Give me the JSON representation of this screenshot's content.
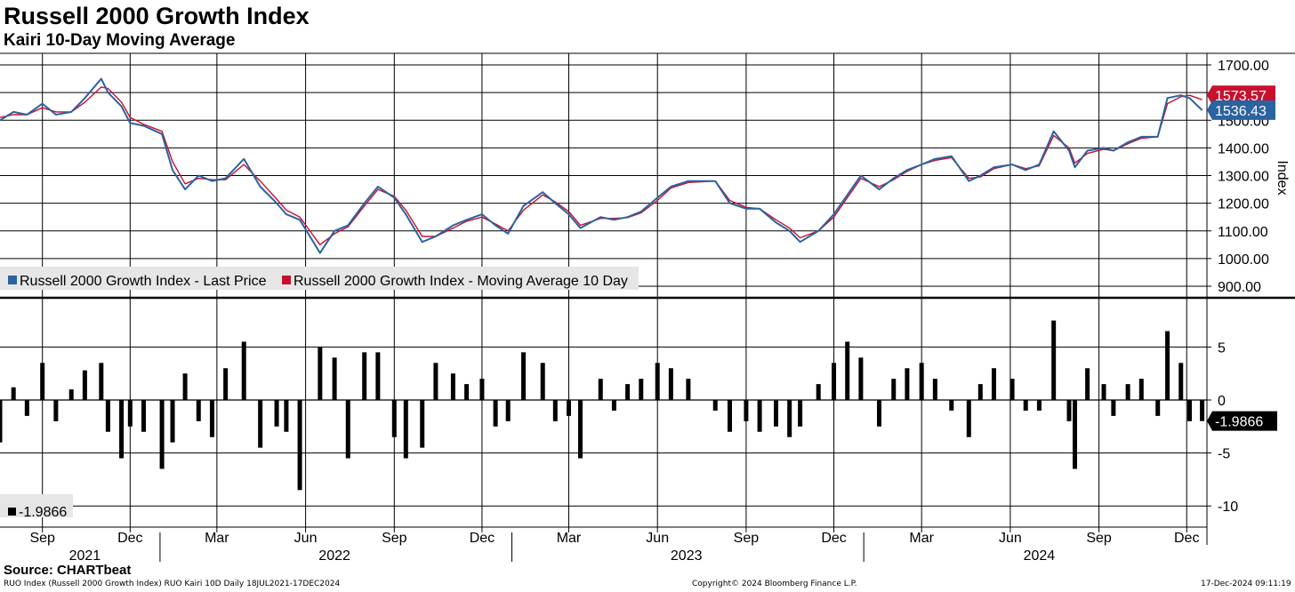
{
  "header": {
    "title": "Russell 2000 Growth Index",
    "subtitle": "Kairi 10-Day Moving Average"
  },
  "footer": {
    "source": "Source: CHARTbeat",
    "left_note": "RUO Index (Russell 2000 Growth Index) RUO Kairi 10D  Daily 18JUL2021-17DEC2024",
    "center_note": "Copyright© 2024 Bloomberg Finance L.P.",
    "right_note": "17-Dec-2024 09:11:19"
  },
  "colors": {
    "last_price": "#2b62a0",
    "moving_average": "#c8102e",
    "kairi": "#000000",
    "grid": "#000000"
  },
  "chart_data": [
    {
      "type": "line",
      "ylabel": "Index",
      "ylim": [
        880,
        1720
      ],
      "y_ticks": [
        "1700.00",
        "1600.00",
        "1500.00",
        "1400.00",
        "1300.00",
        "1200.00",
        "1100.00",
        "1000.00",
        "900.00"
      ],
      "legend_position": "bottom-left",
      "series": [
        {
          "name": "Russell 2000 Growth Index - Last Price",
          "last_value_label": "1536.43",
          "x": [
            "2021-07-19",
            "2021-08-02",
            "2021-08-16",
            "2021-09-01",
            "2021-09-15",
            "2021-10-01",
            "2021-10-15",
            "2021-11-01",
            "2021-11-08",
            "2021-11-22",
            "2021-12-01",
            "2021-12-15",
            "2022-01-03",
            "2022-01-14",
            "2022-01-27",
            "2022-02-10",
            "2022-02-24",
            "2022-03-10",
            "2022-03-29",
            "2022-04-15",
            "2022-05-02",
            "2022-05-12",
            "2022-05-26",
            "2022-06-16",
            "2022-07-01",
            "2022-07-15",
            "2022-08-01",
            "2022-08-15",
            "2022-09-01",
            "2022-09-13",
            "2022-09-30",
            "2022-10-14",
            "2022-11-01",
            "2022-11-15",
            "2022-12-01",
            "2022-12-15",
            "2022-12-28",
            "2023-01-13",
            "2023-02-02",
            "2023-02-15",
            "2023-03-01",
            "2023-03-13",
            "2023-04-03",
            "2023-04-17",
            "2023-05-01",
            "2023-05-15",
            "2023-06-01",
            "2023-06-15",
            "2023-07-03",
            "2023-07-31",
            "2023-08-15",
            "2023-09-01",
            "2023-09-15",
            "2023-10-02",
            "2023-10-16",
            "2023-10-27",
            "2023-11-15",
            "2023-12-01",
            "2023-12-15",
            "2023-12-29",
            "2024-01-17",
            "2024-02-01",
            "2024-02-15",
            "2024-03-01",
            "2024-03-15",
            "2024-04-01",
            "2024-04-19",
            "2024-05-01",
            "2024-05-15",
            "2024-06-03",
            "2024-06-17",
            "2024-07-01",
            "2024-07-16",
            "2024-08-01",
            "2024-08-07",
            "2024-08-20",
            "2024-09-06",
            "2024-09-16",
            "2024-10-01",
            "2024-10-15",
            "2024-11-01",
            "2024-11-11",
            "2024-11-25",
            "2024-12-04",
            "2024-12-17"
          ],
          "y": [
            1500,
            1530,
            1520,
            1560,
            1520,
            1530,
            1580,
            1650,
            1600,
            1550,
            1490,
            1480,
            1450,
            1320,
            1250,
            1300,
            1280,
            1290,
            1360,
            1260,
            1200,
            1160,
            1140,
            1020,
            1100,
            1120,
            1200,
            1260,
            1220,
            1160,
            1060,
            1080,
            1120,
            1140,
            1160,
            1120,
            1090,
            1190,
            1240,
            1200,
            1160,
            1110,
            1150,
            1140,
            1150,
            1170,
            1220,
            1260,
            1280,
            1280,
            1200,
            1180,
            1180,
            1130,
            1100,
            1060,
            1100,
            1160,
            1230,
            1300,
            1250,
            1290,
            1320,
            1340,
            1360,
            1370,
            1280,
            1300,
            1330,
            1340,
            1320,
            1340,
            1460,
            1390,
            1330,
            1390,
            1400,
            1390,
            1420,
            1440,
            1440,
            1580,
            1590,
            1580,
            1536
          ]
        },
        {
          "name": "Russell 2000 Growth Index - Moving Average 10 Day",
          "last_value_label": "1573.57",
          "x": [
            "2021-07-19",
            "2021-08-02",
            "2021-08-16",
            "2021-09-01",
            "2021-09-15",
            "2021-10-01",
            "2021-10-15",
            "2021-11-01",
            "2021-11-08",
            "2021-11-22",
            "2021-12-01",
            "2021-12-15",
            "2022-01-03",
            "2022-01-14",
            "2022-01-27",
            "2022-02-10",
            "2022-02-24",
            "2022-03-10",
            "2022-03-29",
            "2022-04-15",
            "2022-05-02",
            "2022-05-12",
            "2022-05-26",
            "2022-06-16",
            "2022-07-01",
            "2022-07-15",
            "2022-08-01",
            "2022-08-15",
            "2022-09-01",
            "2022-09-13",
            "2022-09-30",
            "2022-10-14",
            "2022-11-01",
            "2022-11-15",
            "2022-12-01",
            "2022-12-15",
            "2022-12-28",
            "2023-01-13",
            "2023-02-02",
            "2023-02-15",
            "2023-03-01",
            "2023-03-13",
            "2023-04-03",
            "2023-04-17",
            "2023-05-01",
            "2023-05-15",
            "2023-06-01",
            "2023-06-15",
            "2023-07-03",
            "2023-07-31",
            "2023-08-15",
            "2023-09-01",
            "2023-09-15",
            "2023-10-02",
            "2023-10-16",
            "2023-10-27",
            "2023-11-15",
            "2023-12-01",
            "2023-12-15",
            "2023-12-29",
            "2024-01-17",
            "2024-02-01",
            "2024-02-15",
            "2024-03-01",
            "2024-03-15",
            "2024-04-01",
            "2024-04-19",
            "2024-05-01",
            "2024-05-15",
            "2024-06-03",
            "2024-06-17",
            "2024-07-01",
            "2024-07-16",
            "2024-08-01",
            "2024-08-07",
            "2024-08-20",
            "2024-09-06",
            "2024-09-16",
            "2024-10-01",
            "2024-10-15",
            "2024-11-01",
            "2024-11-11",
            "2024-11-25",
            "2024-12-04",
            "2024-12-17"
          ],
          "y": [
            1510,
            1520,
            1520,
            1545,
            1530,
            1530,
            1565,
            1620,
            1615,
            1565,
            1510,
            1485,
            1460,
            1350,
            1270,
            1290,
            1285,
            1285,
            1340,
            1280,
            1215,
            1175,
            1150,
            1050,
            1090,
            1115,
            1190,
            1250,
            1225,
            1175,
            1080,
            1080,
            1110,
            1135,
            1150,
            1125,
            1100,
            1175,
            1230,
            1205,
            1170,
            1120,
            1145,
            1145,
            1148,
            1165,
            1210,
            1255,
            1275,
            1280,
            1210,
            1185,
            1180,
            1140,
            1110,
            1075,
            1100,
            1150,
            1220,
            1290,
            1260,
            1285,
            1315,
            1340,
            1355,
            1365,
            1290,
            1295,
            1325,
            1340,
            1325,
            1335,
            1445,
            1400,
            1345,
            1380,
            1395,
            1390,
            1415,
            1435,
            1440,
            1560,
            1585,
            1590,
            1574
          ]
        }
      ]
    },
    {
      "type": "bar",
      "ylim": [
        -12,
        9
      ],
      "y_ticks": [
        "5",
        "0",
        "-5",
        "-10"
      ],
      "series": [
        {
          "name": "Kairi 10D",
          "last_value_label": "-1.9866",
          "x": [
            "2021-07-19",
            "2021-08-02",
            "2021-08-16",
            "2021-09-01",
            "2021-09-15",
            "2021-10-01",
            "2021-10-15",
            "2021-11-01",
            "2021-11-08",
            "2021-11-22",
            "2021-12-01",
            "2021-12-15",
            "2022-01-03",
            "2022-01-14",
            "2022-01-27",
            "2022-02-10",
            "2022-02-24",
            "2022-03-10",
            "2022-03-29",
            "2022-04-15",
            "2022-05-02",
            "2022-05-12",
            "2022-05-26",
            "2022-06-16",
            "2022-07-01",
            "2022-07-15",
            "2022-08-01",
            "2022-08-15",
            "2022-09-01",
            "2022-09-13",
            "2022-09-30",
            "2022-10-14",
            "2022-11-01",
            "2022-11-15",
            "2022-12-01",
            "2022-12-15",
            "2022-12-28",
            "2023-01-13",
            "2023-02-02",
            "2023-02-15",
            "2023-03-01",
            "2023-03-13",
            "2023-04-03",
            "2023-04-17",
            "2023-05-01",
            "2023-05-15",
            "2023-06-01",
            "2023-06-15",
            "2023-07-03",
            "2023-07-31",
            "2023-08-15",
            "2023-09-01",
            "2023-09-15",
            "2023-10-02",
            "2023-10-16",
            "2023-10-27",
            "2023-11-15",
            "2023-12-01",
            "2023-12-15",
            "2023-12-29",
            "2024-01-17",
            "2024-02-01",
            "2024-02-15",
            "2024-03-01",
            "2024-03-15",
            "2024-04-01",
            "2024-04-19",
            "2024-05-01",
            "2024-05-15",
            "2024-06-03",
            "2024-06-17",
            "2024-07-01",
            "2024-07-16",
            "2024-08-01",
            "2024-08-07",
            "2024-08-20",
            "2024-09-06",
            "2024-09-16",
            "2024-10-01",
            "2024-10-15",
            "2024-11-01",
            "2024-11-11",
            "2024-11-25",
            "2024-12-04",
            "2024-12-17"
          ],
          "y": [
            -4.0,
            1.2,
            -1.5,
            3.5,
            -2.0,
            1.0,
            2.8,
            3.5,
            -3.0,
            -5.5,
            -2.5,
            -3.0,
            -6.5,
            -4.0,
            2.5,
            -2.0,
            -3.5,
            3.0,
            5.5,
            -4.5,
            -2.5,
            -3.0,
            -8.5,
            5.0,
            4.0,
            -5.5,
            4.5,
            4.5,
            -3.5,
            -5.5,
            -4.5,
            3.5,
            2.5,
            1.5,
            2.0,
            -2.5,
            -2.0,
            4.5,
            3.5,
            -2.0,
            -1.5,
            -5.5,
            2.0,
            -1.0,
            1.5,
            2.0,
            3.5,
            3.0,
            2.0,
            -1.0,
            -3.0,
            -2.0,
            -3.0,
            -2.5,
            -3.5,
            -2.5,
            1.5,
            3.5,
            5.5,
            4.0,
            -2.5,
            2.0,
            3.0,
            3.5,
            2.0,
            -1.0,
            -3.5,
            1.5,
            3.0,
            2.0,
            -1.0,
            -1.0,
            7.5,
            -2.0,
            -6.5,
            3.0,
            1.5,
            -1.5,
            1.5,
            2.0,
            -1.5,
            6.5,
            3.5,
            -2.0,
            -1.9866
          ]
        }
      ]
    }
  ],
  "x_axis": {
    "month_ticks": [
      {
        "label": "Sep",
        "date": "2021-09-01"
      },
      {
        "label": "Dec",
        "date": "2021-12-01"
      },
      {
        "label": "Mar",
        "date": "2022-03-01"
      },
      {
        "label": "Jun",
        "date": "2022-06-01"
      },
      {
        "label": "Sep",
        "date": "2022-09-01"
      },
      {
        "label": "Dec",
        "date": "2022-12-01"
      },
      {
        "label": "Mar",
        "date": "2023-03-01"
      },
      {
        "label": "Jun",
        "date": "2023-06-01"
      },
      {
        "label": "Sep",
        "date": "2023-09-01"
      },
      {
        "label": "Dec",
        "date": "2023-12-01"
      },
      {
        "label": "Mar",
        "date": "2024-03-01"
      },
      {
        "label": "Jun",
        "date": "2024-06-01"
      },
      {
        "label": "Sep",
        "date": "2024-09-01"
      },
      {
        "label": "Dec",
        "date": "2024-12-01"
      }
    ],
    "year_labels": [
      {
        "label": "2021",
        "date": "2021-10-15"
      },
      {
        "label": "2022",
        "date": "2022-07-01"
      },
      {
        "label": "2023",
        "date": "2023-07-01"
      },
      {
        "label": "2024",
        "date": "2024-07-01"
      }
    ],
    "year_boundaries": [
      "2022-01-01",
      "2023-01-01",
      "2024-01-01"
    ],
    "range": [
      "2021-07-19",
      "2024-12-22"
    ]
  },
  "legend": {
    "top_items": [
      {
        "label": "Russell 2000 Growth Index - Last Price",
        "color": "#2b62a0"
      },
      {
        "label": "Russell 2000 Growth Index - Moving Average 10 Day",
        "color": "#c8102e"
      }
    ],
    "bottom_item": {
      "label": "-1.9866",
      "color": "#000000"
    }
  }
}
